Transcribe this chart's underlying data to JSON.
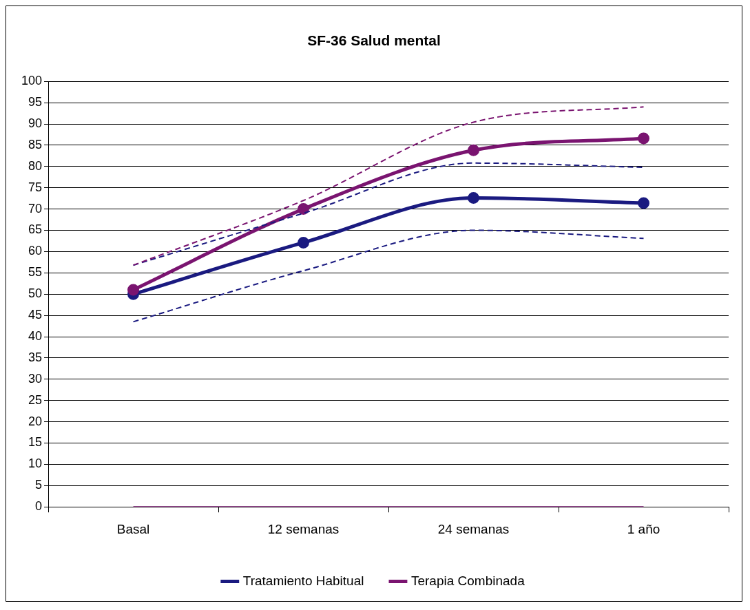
{
  "chart_data": {
    "type": "line",
    "title": "SF-36 Salud mental",
    "categories": [
      "Basal",
      "12 semanas",
      "24 semanas",
      "1 año"
    ],
    "series": [
      {
        "name": "Tratamiento Habitual",
        "color": "#1a1a80",
        "values": [
          50.0,
          62.1,
          72.6,
          71.4
        ]
      },
      {
        "name": "Terapia Combinada",
        "color": "#7a1470",
        "values": [
          51.0,
          70.0,
          83.8,
          86.6
        ]
      },
      {
        "color": "#1a1a80",
        "values": [
          56.8,
          69.0,
          80.8,
          79.8
        ],
        "line_style": "dashed",
        "marker": "none"
      },
      {
        "color": "#1a1a80",
        "values": [
          43.5,
          55.5,
          65.0,
          63.1
        ],
        "line_style": "dashed",
        "marker": "none"
      },
      {
        "color": "#7a1470",
        "values": [
          56.8,
          72.0,
          90.4,
          94.0
        ],
        "line_style": "dashed",
        "marker": "none"
      },
      {
        "color": "#7a1470",
        "values": [
          0,
          0,
          0,
          0
        ],
        "marker": "none"
      }
    ],
    "ylim": [
      0,
      100
    ],
    "yticks": [
      0,
      5,
      10,
      15,
      20,
      25,
      30,
      35,
      40,
      45,
      50,
      55,
      60,
      65,
      70,
      75,
      80,
      85,
      90,
      95,
      100
    ],
    "grid": "y",
    "legend": "bottom",
    "marker": "circle",
    "line_style": "solid"
  }
}
